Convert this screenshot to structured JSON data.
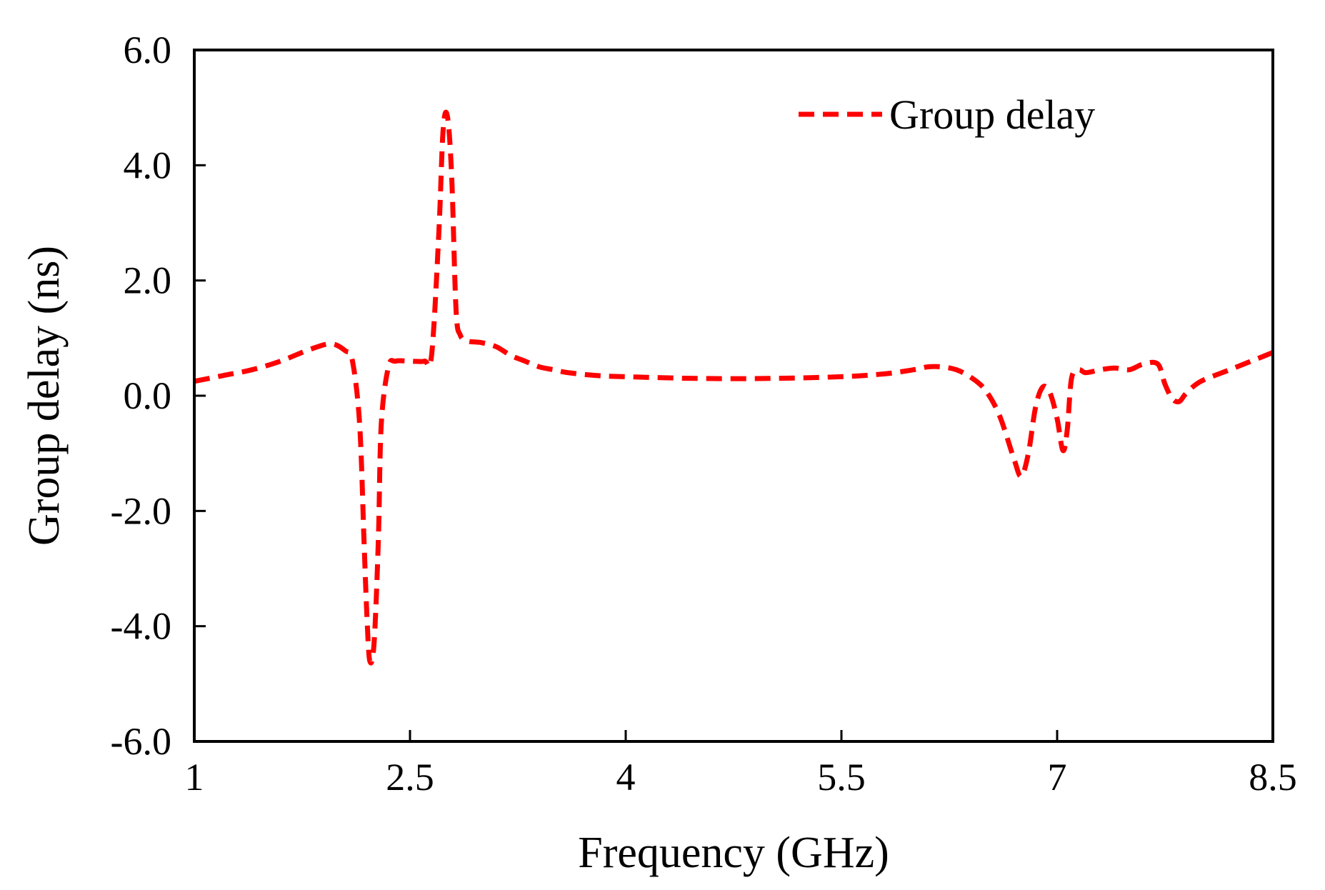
{
  "chart_data": {
    "type": "line",
    "title": "",
    "xlabel": "Frequency (GHz)",
    "ylabel": "Group delay (ns)",
    "xlim": [
      1,
      8.5
    ],
    "ylim": [
      -6.0,
      6.0
    ],
    "xticks": [
      1,
      2.5,
      4,
      5.5,
      7,
      8.5
    ],
    "xtick_labels": [
      "1",
      "2.5",
      "4",
      "5.5",
      "7",
      "8.5"
    ],
    "yticks": [
      6.0,
      4.0,
      2.0,
      0.0,
      -2.0,
      -4.0,
      -6.0
    ],
    "ytick_labels": [
      "6.0",
      "4.0",
      "2.0",
      "0.0",
      "-2.0",
      "-4.0",
      "-6.0"
    ],
    "grid": false,
    "legend_position": "top-right",
    "series": [
      {
        "name": "Group delay",
        "color": "#ff0000",
        "style": "dashed",
        "x": [
          1.0,
          1.2,
          1.4,
          1.6,
          1.8,
          1.95,
          2.05,
          2.1,
          2.15,
          2.18,
          2.2,
          2.22,
          2.25,
          2.28,
          2.3,
          2.35,
          2.4,
          2.5,
          2.6,
          2.65,
          2.7,
          2.73,
          2.76,
          2.79,
          2.82,
          2.85,
          2.9,
          3.0,
          3.1,
          3.2,
          3.3,
          3.4,
          3.5,
          3.6,
          3.8,
          4.0,
          4.5,
          5.0,
          5.5,
          5.8,
          6.0,
          6.1,
          6.2,
          6.3,
          6.4,
          6.5,
          6.6,
          6.7,
          6.75,
          6.8,
          6.85,
          6.9,
          6.95,
          7.0,
          7.04,
          7.07,
          7.1,
          7.15,
          7.2,
          7.3,
          7.4,
          7.5,
          7.6,
          7.7,
          7.75,
          7.8,
          7.85,
          7.9,
          8.0,
          8.2,
          8.4,
          8.5
        ],
        "y": [
          0.25,
          0.35,
          0.45,
          0.6,
          0.8,
          0.9,
          0.78,
          0.6,
          -0.5,
          -2.5,
          -3.8,
          -4.6,
          -4.3,
          -2.5,
          -0.5,
          0.5,
          0.6,
          0.6,
          0.6,
          0.7,
          2.8,
          4.6,
          4.85,
          3.8,
          1.5,
          1.05,
          0.95,
          0.92,
          0.85,
          0.7,
          0.6,
          0.5,
          0.45,
          0.4,
          0.35,
          0.33,
          0.3,
          0.3,
          0.33,
          0.38,
          0.45,
          0.5,
          0.5,
          0.45,
          0.32,
          0.1,
          -0.35,
          -1.1,
          -1.4,
          -1.0,
          -0.2,
          0.15,
          0.05,
          -0.4,
          -0.95,
          -0.6,
          0.3,
          0.45,
          0.4,
          0.45,
          0.48,
          0.45,
          0.55,
          0.55,
          0.2,
          -0.05,
          -0.1,
          0.05,
          0.25,
          0.45,
          0.65,
          0.75
        ]
      }
    ]
  }
}
